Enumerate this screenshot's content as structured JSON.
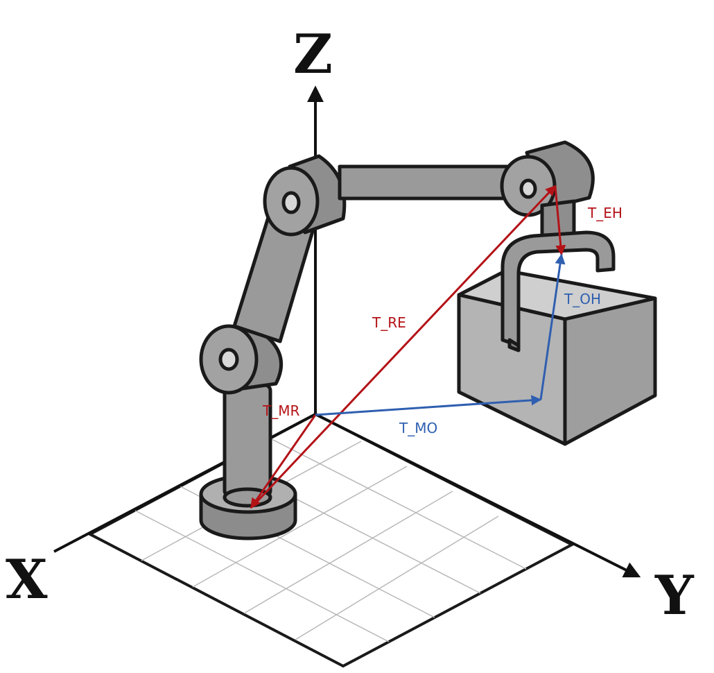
{
  "axes": {
    "x_label": "X",
    "y_label": "Y",
    "z_label": "Z"
  },
  "transforms": {
    "t_mr": "T_MR",
    "t_re": "T_RE",
    "t_eh": "T_EH",
    "t_oh": "T_OH",
    "t_mo": "T_MO"
  },
  "colors": {
    "robot_chain": "#b31217",
    "object_chain": "#2f5fb0",
    "metal": "#9a9a9a",
    "metal_dark": "#7e7e7e",
    "metal_light": "#bdbdbd",
    "grid": "#b8b8b8"
  },
  "icons": {
    "robot": "robot-arm-icon",
    "gripper": "gripper-icon",
    "box": "box-object-icon"
  }
}
